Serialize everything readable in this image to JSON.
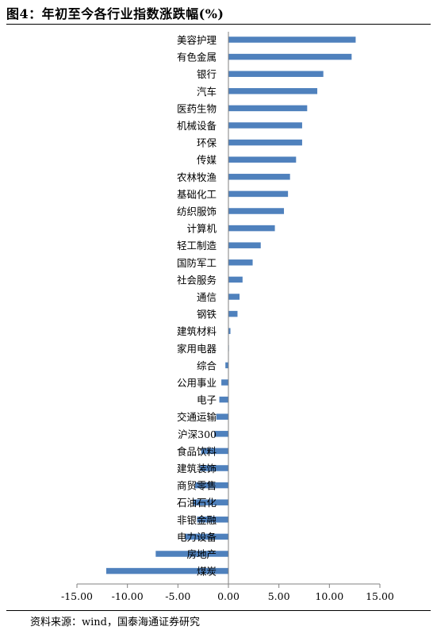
{
  "header": {
    "title": "图4：年初至今各行业指数涨跌幅(%)"
  },
  "footer": {
    "source": "资料来源：wind，国泰海通证券研究"
  },
  "chart_data": {
    "type": "bar",
    "orientation": "horizontal",
    "title": "",
    "xlabel": "",
    "ylabel": "",
    "xlim": [
      -15,
      15
    ],
    "x_ticks": [
      "-15.00",
      "-10.00",
      "-5.00",
      "0.00",
      "5.00",
      "10.00",
      "15.00"
    ],
    "bar_color": "#4F81BD",
    "grid": false,
    "categories": [
      "美容护理",
      "有色金属",
      "银行",
      "汽车",
      "医药生物",
      "机械设备",
      "环保",
      "传媒",
      "农林牧渔",
      "基础化工",
      "纺织服饰",
      "计算机",
      "轻工制造",
      "国防军工",
      "社会服务",
      "通信",
      "钢铁",
      "建筑材料",
      "家用电器",
      "综合",
      "公用事业",
      "电子",
      "交通运输",
      "沪深300",
      "食品饮料",
      "建筑装饰",
      "商贸零售",
      "石油石化",
      "非银金融",
      "电力设备",
      "房地产",
      "煤炭"
    ],
    "values": [
      12.6,
      12.2,
      9.4,
      8.8,
      7.8,
      7.3,
      7.3,
      6.7,
      6.1,
      5.9,
      5.5,
      4.6,
      3.2,
      2.4,
      1.4,
      1.1,
      0.9,
      0.2,
      0.05,
      -0.3,
      -0.7,
      -0.9,
      -1.2,
      -1.4,
      -2.7,
      -2.8,
      -3.3,
      -3.5,
      -3.1,
      -4.3,
      -7.2,
      -12.1
    ]
  }
}
